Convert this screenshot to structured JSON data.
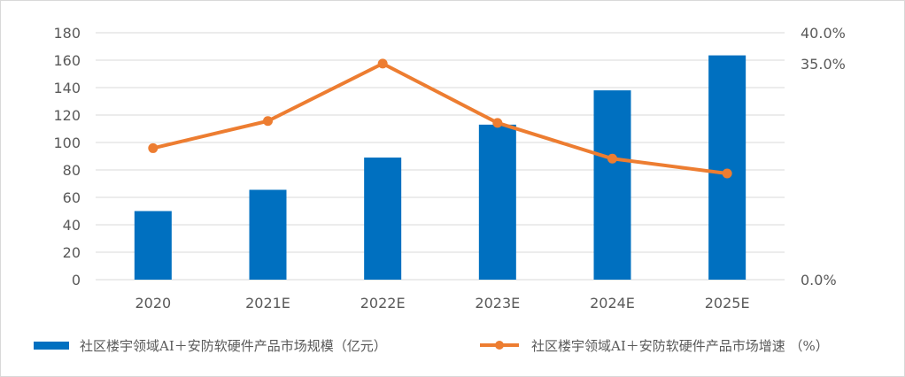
{
  "chart_data": {
    "type": "bar",
    "categories": [
      "2020",
      "2021E",
      "2022E",
      "2023E",
      "2024E",
      "2025E"
    ],
    "series": [
      {
        "name": "社区楼宇领域AI＋安防软硬件产品市场规模（亿元）",
        "type": "bar",
        "axis": "left",
        "color": "#0070C0",
        "values": [
          50,
          65.5,
          89,
          113,
          138,
          163.5
        ]
      },
      {
        "name": "社区楼宇领域AI＋安防软硬件产品市场增速 （%）",
        "type": "line",
        "axis": "right",
        "color": "#ED7D31",
        "values": [
          21.3,
          25.7,
          35.0,
          25.4,
          19.6,
          17.2
        ]
      }
    ],
    "left_axis": {
      "ylim": [
        0,
        180
      ],
      "ticks": [
        "0",
        "20",
        "40",
        "60",
        "80",
        "100",
        "120",
        "140",
        "160",
        "180"
      ]
    },
    "right_axis": {
      "ticks": [
        {
          "value": 0,
          "label": "0.0%"
        },
        {
          "value": 35,
          "label": "35.0%"
        },
        {
          "value": 40,
          "label": "40.0%"
        }
      ]
    },
    "grid": true,
    "legend": "bottom"
  }
}
